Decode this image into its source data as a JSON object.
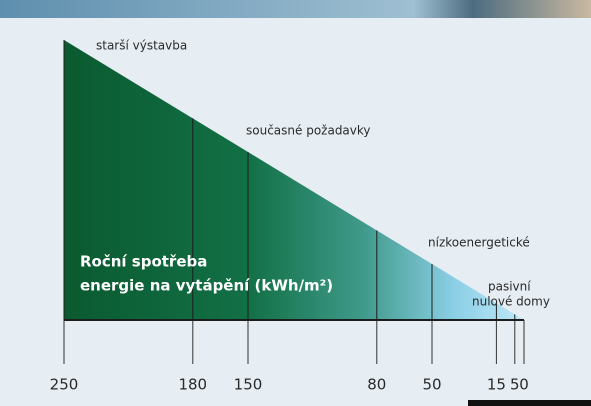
{
  "chart_data": {
    "type": "triangle",
    "title_lines": [
      "Roční spotřeba",
      "energie na vytápění (kWh/m²)"
    ],
    "annotations": [
      "starší výstavba",
      "současné požadavky",
      "nízkoenergetické",
      "pasivní",
      "nulové domy"
    ],
    "xlim": [
      250,
      0
    ],
    "xticks": [
      250,
      180,
      150,
      80,
      50,
      15,
      5,
      0
    ]
  }
}
